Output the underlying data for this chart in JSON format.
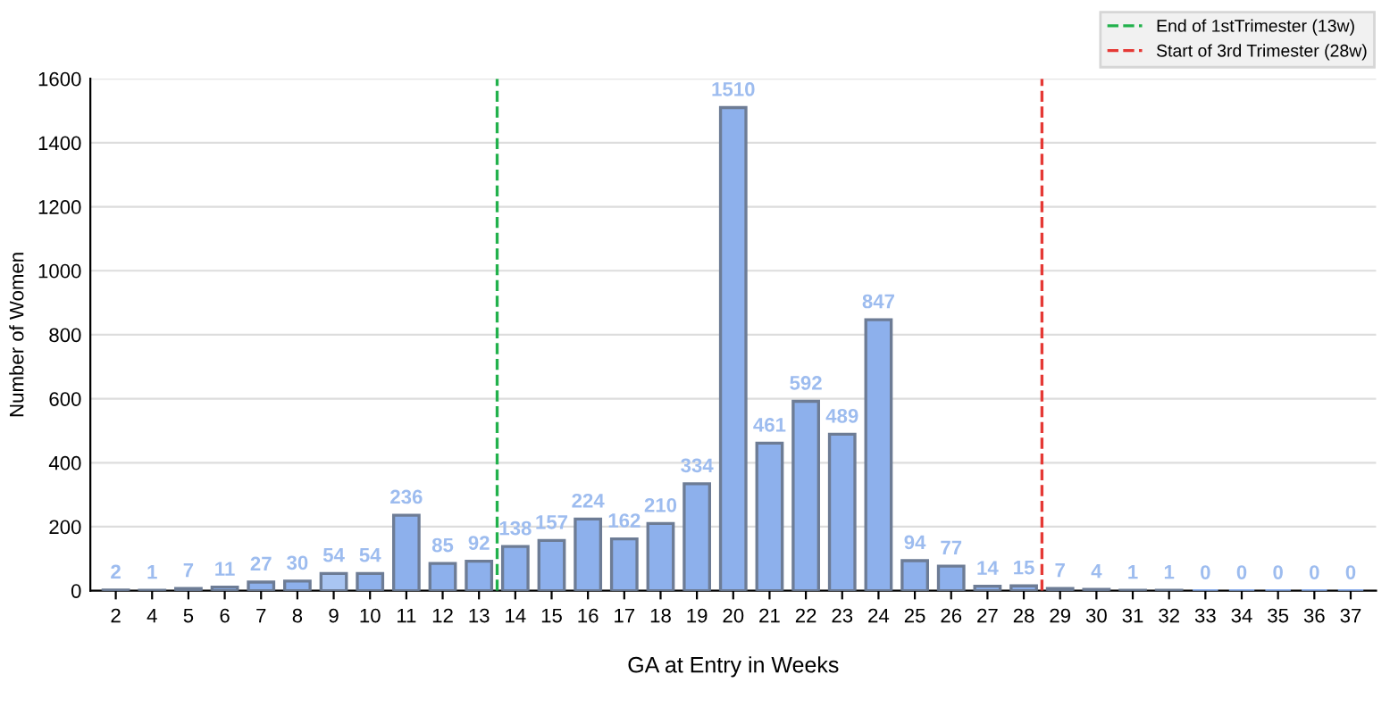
{
  "chart_data": {
    "type": "bar",
    "xlabel": "GA at Entry in Weeks",
    "ylabel": "Number of Women",
    "categories": [
      "2",
      "4",
      "5",
      "6",
      "7",
      "8",
      "9",
      "10",
      "11",
      "12",
      "13",
      "14",
      "15",
      "16",
      "17",
      "18",
      "19",
      "20",
      "21",
      "22",
      "23",
      "24",
      "25",
      "26",
      "27",
      "28",
      "29",
      "30",
      "31",
      "32",
      "33",
      "34",
      "35",
      "36",
      "37"
    ],
    "values": [
      2,
      1,
      7,
      11,
      27,
      30,
      54,
      54,
      236,
      85,
      92,
      138,
      157,
      224,
      162,
      210,
      334,
      1510,
      461,
      592,
      489,
      847,
      94,
      77,
      14,
      15,
      7,
      4,
      1,
      1,
      0,
      0,
      0,
      0,
      0
    ],
    "colors": [
      "#8db0ec",
      "#8db0ec",
      "#8db0ec",
      "#8db0ec",
      "#8db0ec",
      "#8db0ec",
      "#a9c5f2",
      "#8db0ec",
      "#8db0ec",
      "#8db0ec",
      "#8db0ec",
      "#8db0ec",
      "#8db0ec",
      "#8db0ec",
      "#8db0ec",
      "#8db0ec",
      "#8db0ec",
      "#8db0ec",
      "#8db0ec",
      "#8db0ec",
      "#8db0ec",
      "#8db0ec",
      "#8db0ec",
      "#8db0ec",
      "#8db0ec",
      "#8db0ec",
      "#8db0ec",
      "#8db0ec",
      "#8db0ec",
      "#8db0ec",
      "#8db0ec",
      "#8db0ec",
      "#8db0ec",
      "#8db0ec",
      "#8db0ec"
    ],
    "ylim": [
      0,
      1600
    ],
    "yticks": [
      0,
      200,
      400,
      600,
      800,
      1000,
      1200,
      1400,
      1600
    ],
    "grid": "y",
    "data_labels": true,
    "legend": "top right",
    "ref_lines": [
      {
        "axis": "x",
        "value": "13",
        "label": "End of 1stTrimester (13w)",
        "color": "#22b14c",
        "line_style": "dashed"
      },
      {
        "axis": "x",
        "value": "28",
        "label": "Start of 3rd Trimester (28w)",
        "color": "#e53935",
        "line_style": "dashed"
      }
    ]
  }
}
